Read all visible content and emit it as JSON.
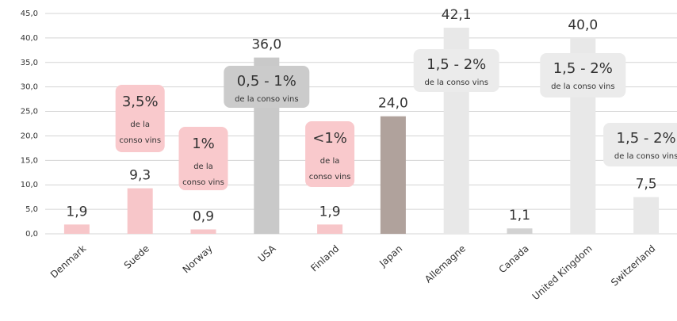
{
  "chart_data": {
    "type": "bar",
    "categories": [
      "Denmark",
      "Suede",
      "Norway",
      "USA",
      "Finland",
      "Japan",
      "Allemagne",
      "Canada",
      "United Kingdom",
      "Switzerland"
    ],
    "values": [
      1.9,
      9.3,
      0.9,
      36.0,
      1.9,
      24.0,
      42.1,
      1.1,
      40.0,
      7.5
    ],
    "value_labels": [
      "1,9",
      "9,3",
      "0,9",
      "36,0",
      "1,9",
      "24,0",
      "42,1",
      "1,1",
      "40,0",
      "7,5"
    ],
    "colors": [
      "#f7c6c9",
      "#f7c6c9",
      "#f7c6c9",
      "#c9c9c9",
      "#f7c6c9",
      "#b0a29c",
      "#e8e8e8",
      "#d2d2d2",
      "#e8e8e8",
      "#e8e8e8"
    ],
    "ylim": [
      0,
      45
    ],
    "yticks": [
      {
        "value": 0,
        "label": "0,0"
      },
      {
        "value": 5,
        "label": "5,0"
      },
      {
        "value": 10,
        "label": "10,0"
      },
      {
        "value": 15,
        "label": "15,0"
      },
      {
        "value": 20,
        "label": "20,0"
      },
      {
        "value": 25,
        "label": "25,0"
      },
      {
        "value": 30,
        "label": "30,0"
      },
      {
        "value": 35,
        "label": "35,0"
      },
      {
        "value": 40,
        "label": "40,0"
      },
      {
        "value": 45,
        "label": "45,0"
      }
    ],
    "grid": true,
    "annotations": [
      {
        "category": "Suede",
        "color": "#f9c9cc",
        "lines": [
          "3,5%",
          "de la",
          "conso vins"
        ]
      },
      {
        "category": "Norway",
        "color": "#f9c9cc",
        "lines": [
          "1%",
          "de la",
          "conso vins"
        ]
      },
      {
        "category": "USA",
        "color": "#cbcbcb",
        "lines": [
          "0,5 - 1%",
          "de la conso vins"
        ]
      },
      {
        "category": "Finland",
        "color": "#f9c9cc",
        "lines": [
          "<1%",
          "de la",
          "conso vins"
        ]
      },
      {
        "category": "Allemagne",
        "color": "#ebebeb",
        "lines": [
          "1,5 - 2%",
          "de la conso vins"
        ]
      },
      {
        "category": "United Kingdom",
        "color": "#ebebeb",
        "lines": [
          "1,5 - 2%",
          "de la conso vins"
        ]
      },
      {
        "category": "Switzerland",
        "color": "#ebebeb",
        "lines": [
          "1,5 - 2%",
          "de la conso vins"
        ]
      }
    ]
  }
}
